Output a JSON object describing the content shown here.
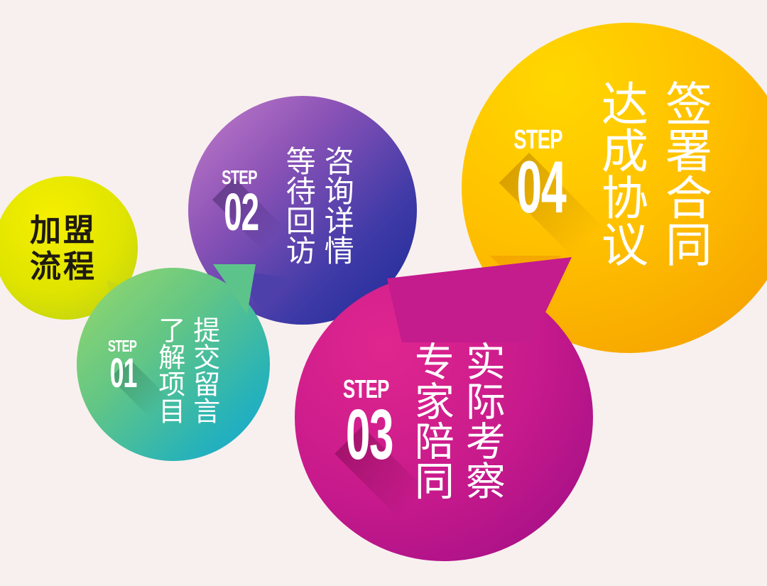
{
  "title": {
    "line1": "加盟",
    "line2": "流程"
  },
  "steps": [
    {
      "step_label": "STEP",
      "number": "01",
      "col1": "提交留言",
      "col2": "了解项目"
    },
    {
      "step_label": "STEP",
      "number": "02",
      "col1": "咨询详情",
      "col2": "等待回访"
    },
    {
      "step_label": "STEP",
      "number": "03",
      "col1": "实际考察",
      "col2": "专家陪同"
    },
    {
      "step_label": "STEP",
      "number": "04",
      "col1": "签署合同",
      "col2": "达成协议"
    }
  ],
  "colors": {
    "background": "#f8f0ee",
    "title_bubble": [
      "#f4ed00",
      "#bccf1a"
    ],
    "step01": [
      "#8fd66b",
      "#10a8d8"
    ],
    "step02": [
      "#c47ac9",
      "#1e2f9c"
    ],
    "step03": [
      "#e0248f",
      "#9a0f88"
    ],
    "step04": [
      "#ffd400",
      "#f28a00"
    ]
  }
}
